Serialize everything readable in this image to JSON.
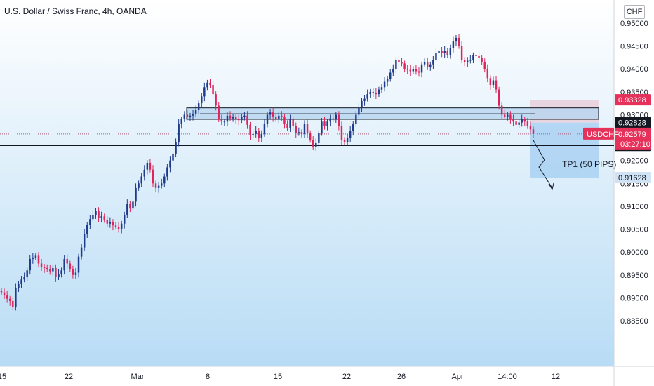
{
  "header": {
    "title": "U.S. Dollar / Swiss Franc, 4h, OANDA",
    "currency": "CHF"
  },
  "colors": {
    "up": "#1e3a8a",
    "down": "#e0235a",
    "bg_top": "#ffffff",
    "bg_bottom": "#b8dcf5",
    "zone_fill": "#b3d4f0",
    "stop_zone": "#e9cfd9",
    "target_zone": "#a9d1f2",
    "tag_red": "#e6315a",
    "tag_dark": "#131722",
    "tag_blue": "#cfe3f5"
  },
  "chart_data": {
    "type": "candlestick",
    "symbol": "USDCHF",
    "interval": "4h",
    "ylim": [
      0.88,
      0.951
    ],
    "y_ticks": [
      "0.95000",
      "0.94500",
      "0.94000",
      "0.93500",
      "0.93000",
      "0.92500",
      "0.92000",
      "0.91500",
      "0.91000",
      "0.90500",
      "0.90000",
      "0.89500",
      "0.89000",
      "0.88500"
    ],
    "x_ticks": [
      "15",
      "22",
      "Mar",
      "8",
      "15",
      "22",
      "26",
      "Apr",
      "14:00",
      "12"
    ],
    "key_levels": [
      {
        "label": "0.92328",
        "price": 0.92328,
        "style": "dark"
      },
      {
        "label": "0.92828",
        "price": 0.92828,
        "style": "dark"
      },
      {
        "label": "0.93328",
        "price": 0.93328,
        "style": "red"
      },
      {
        "label": "0.91628",
        "price": 0.91628,
        "style": "blue"
      }
    ],
    "current_price": {
      "symbol": "USDCHF",
      "price": "0.92579",
      "timer": "03:27:10"
    },
    "annotations": [
      "TP1 (50 PIPS)"
    ],
    "resistance_zone": [
      0.929,
      0.9315
    ],
    "closes": [
      0.8912,
      0.8905,
      0.8898,
      0.8893,
      0.888,
      0.8922,
      0.8931,
      0.894,
      0.8945,
      0.896,
      0.8985,
      0.8988,
      0.8992,
      0.8975,
      0.8968,
      0.8965,
      0.8962,
      0.8958,
      0.8965,
      0.8945,
      0.8952,
      0.896,
      0.8985,
      0.8975,
      0.8962,
      0.895,
      0.8955,
      0.899,
      0.901,
      0.904,
      0.906,
      0.9072,
      0.908,
      0.909,
      0.9075,
      0.9078,
      0.907,
      0.9062,
      0.9066,
      0.9058,
      0.9055,
      0.905,
      0.9062,
      0.908,
      0.9105,
      0.9095,
      0.911,
      0.914,
      0.915,
      0.9165,
      0.918,
      0.9195,
      0.918,
      0.915,
      0.914,
      0.9145,
      0.915,
      0.9165,
      0.9185,
      0.92,
      0.9215,
      0.924,
      0.928,
      0.929,
      0.93,
      0.9295,
      0.9298,
      0.9302,
      0.931,
      0.9325,
      0.934,
      0.936,
      0.937,
      0.9365,
      0.9345,
      0.932,
      0.929,
      0.9285,
      0.9285,
      0.9298,
      0.9292,
      0.9295,
      0.929,
      0.9288,
      0.9295,
      0.9298,
      0.9278,
      0.9255,
      0.9258,
      0.9265,
      0.925,
      0.9258,
      0.928,
      0.93,
      0.9305,
      0.9295,
      0.929,
      0.9298,
      0.9295,
      0.928,
      0.927,
      0.929,
      0.9275,
      0.926,
      0.9262,
      0.9258,
      0.928,
      0.926,
      0.9245,
      0.923,
      0.9238,
      0.926,
      0.9285,
      0.9275,
      0.9285,
      0.9292,
      0.929,
      0.93,
      0.9275,
      0.9245,
      0.924,
      0.925,
      0.9265,
      0.928,
      0.93,
      0.9315,
      0.933,
      0.9335,
      0.9345,
      0.935,
      0.9348,
      0.9345,
      0.9355,
      0.936,
      0.9372,
      0.9378,
      0.9392,
      0.94,
      0.942,
      0.9415,
      0.9412,
      0.94,
      0.9398,
      0.9395,
      0.94,
      0.9395,
      0.9392,
      0.941,
      0.9415,
      0.9405,
      0.941,
      0.942,
      0.9435,
      0.944,
      0.9435,
      0.944,
      0.943,
      0.9445,
      0.946,
      0.9468,
      0.945,
      0.942,
      0.9415,
      0.9418,
      0.942,
      0.943,
      0.9428,
      0.9425,
      0.9415,
      0.94,
      0.938,
      0.9365,
      0.9375,
      0.9355,
      0.932,
      0.93,
      0.9295,
      0.93,
      0.929,
      0.9285,
      0.9278,
      0.9283,
      0.929,
      0.9285,
      0.9275,
      0.9268,
      0.9258
    ]
  }
}
